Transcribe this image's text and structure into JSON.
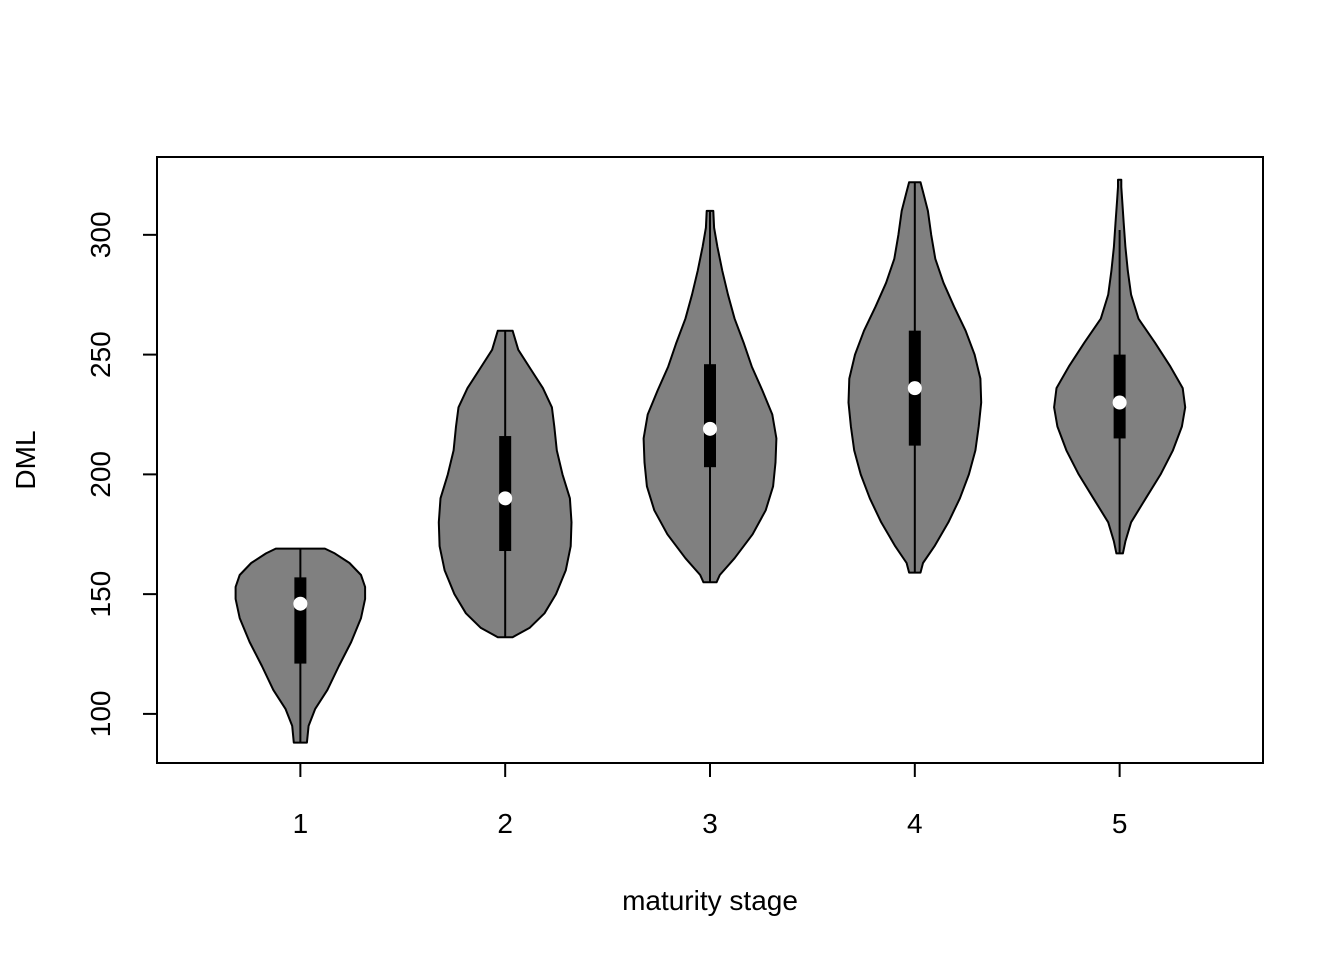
{
  "chart_data": {
    "type": "violin",
    "title": "",
    "xlabel": "maturity stage",
    "ylabel": "DML",
    "categories": [
      "1",
      "2",
      "3",
      "4",
      "5"
    ],
    "yticks": [
      100,
      150,
      200,
      250,
      300
    ],
    "xlim": [
      0.3,
      5.7
    ],
    "ylim": [
      79.5,
      332.5
    ],
    "grid": false,
    "legend": "none",
    "colors": {
      "violin_fill": "#808080",
      "outline": "#000000",
      "box": "#000000",
      "median": "#ffffff"
    },
    "groups": [
      {
        "category": "1",
        "min": 88,
        "q1": 121,
        "median": 146,
        "q3": 157,
        "max": 169,
        "whisker_low": 88,
        "whisker_high": 169,
        "density": [
          [
            88,
            0.08
          ],
          [
            95,
            0.1
          ],
          [
            102,
            0.18
          ],
          [
            110,
            0.33
          ],
          [
            120,
            0.47
          ],
          [
            130,
            0.62
          ],
          [
            140,
            0.74
          ],
          [
            148,
            0.79
          ],
          [
            153,
            0.79
          ],
          [
            158,
            0.74
          ],
          [
            163,
            0.6
          ],
          [
            167,
            0.42
          ],
          [
            169,
            0.3
          ]
        ]
      },
      {
        "category": "2",
        "min": 132,
        "q1": 168,
        "median": 190,
        "q3": 216,
        "max": 260,
        "whisker_low": 132,
        "whisker_high": 260,
        "density": [
          [
            132,
            0.09
          ],
          [
            136,
            0.3
          ],
          [
            142,
            0.48
          ],
          [
            150,
            0.62
          ],
          [
            160,
            0.74
          ],
          [
            170,
            0.8
          ],
          [
            180,
            0.81
          ],
          [
            190,
            0.79
          ],
          [
            200,
            0.7
          ],
          [
            210,
            0.63
          ],
          [
            220,
            0.6
          ],
          [
            228,
            0.57
          ],
          [
            236,
            0.46
          ],
          [
            244,
            0.31
          ],
          [
            252,
            0.16
          ],
          [
            260,
            0.09
          ]
        ]
      },
      {
        "category": "3",
        "min": 155,
        "q1": 203,
        "median": 219,
        "q3": 246,
        "max": 310,
        "whisker_low": 155,
        "whisker_high": 310,
        "density": [
          [
            155,
            0.08
          ],
          [
            158,
            0.12
          ],
          [
            165,
            0.3
          ],
          [
            175,
            0.52
          ],
          [
            185,
            0.68
          ],
          [
            195,
            0.77
          ],
          [
            205,
            0.8
          ],
          [
            215,
            0.81
          ],
          [
            225,
            0.76
          ],
          [
            235,
            0.64
          ],
          [
            245,
            0.51
          ],
          [
            255,
            0.41
          ],
          [
            265,
            0.3
          ],
          [
            275,
            0.22
          ],
          [
            285,
            0.15
          ],
          [
            295,
            0.09
          ],
          [
            303,
            0.05
          ],
          [
            310,
            0.04
          ]
        ]
      },
      {
        "category": "4",
        "min": 159,
        "q1": 212,
        "median": 236,
        "q3": 260,
        "max": 322,
        "whisker_low": 159,
        "whisker_high": 322,
        "density": [
          [
            159,
            0.07
          ],
          [
            163,
            0.1
          ],
          [
            170,
            0.24
          ],
          [
            180,
            0.41
          ],
          [
            190,
            0.55
          ],
          [
            200,
            0.66
          ],
          [
            210,
            0.74
          ],
          [
            220,
            0.78
          ],
          [
            230,
            0.81
          ],
          [
            240,
            0.8
          ],
          [
            250,
            0.73
          ],
          [
            260,
            0.62
          ],
          [
            270,
            0.48
          ],
          [
            280,
            0.35
          ],
          [
            290,
            0.25
          ],
          [
            300,
            0.2
          ],
          [
            310,
            0.16
          ],
          [
            318,
            0.1
          ],
          [
            322,
            0.07
          ]
        ]
      },
      {
        "category": "5",
        "min": 167,
        "q1": 215,
        "median": 230,
        "q3": 250,
        "max": 323,
        "whisker_low": 167,
        "whisker_high": 302,
        "density": [
          [
            167,
            0.04
          ],
          [
            172,
            0.07
          ],
          [
            180,
            0.14
          ],
          [
            190,
            0.32
          ],
          [
            200,
            0.5
          ],
          [
            210,
            0.65
          ],
          [
            220,
            0.76
          ],
          [
            228,
            0.8
          ],
          [
            236,
            0.77
          ],
          [
            245,
            0.62
          ],
          [
            255,
            0.43
          ],
          [
            265,
            0.23
          ],
          [
            275,
            0.14
          ],
          [
            285,
            0.1
          ],
          [
            295,
            0.07
          ],
          [
            305,
            0.05
          ],
          [
            315,
            0.03
          ],
          [
            320,
            0.02
          ],
          [
            323,
            0.02
          ]
        ]
      }
    ]
  }
}
